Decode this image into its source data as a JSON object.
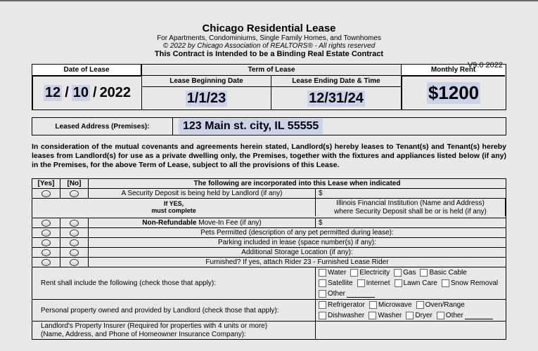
{
  "header": {
    "title": "Chicago Residential Lease",
    "subtitle": "For Apartments, Condominiums, Single Family Homes, and Townhomes",
    "copyright": "© 2022 by Chicago Association of REALTORS® - All rights reserved",
    "binding": "This Contract is Intended to be a Binding Real Estate Contract",
    "version": "V9.0 2022"
  },
  "top": {
    "date_label": "Date of Lease",
    "date_mm": "12",
    "date_dd": "10",
    "date_yy": "2022",
    "term_label": "Term of Lease",
    "begin_label": "Lease Beginning Date",
    "end_label": "Lease Ending Date & Time",
    "begin_val": "1/1/23",
    "end_val": "12/31/24",
    "rent_label": "Monthly Rent",
    "rent_val": "$1200"
  },
  "addr": {
    "label": "Leased Address (Premises):",
    "value": "123 Main st. city, IL 55555"
  },
  "para": "In consideration of the mutual covenants and agreements herein stated, Landlord(s) hereby leases to Tenant(s) and Tenant(s) hereby leases from Landlord(s) for use as a private dwelling only, the Premises, together with the fixtures and appliances listed below (if any) in the Premises, for the above Term of Lease, subject to all the provisions of this Lease.",
  "table": {
    "yes": "[Yes]",
    "no": "[No]",
    "inc_label": "The following are incorporated into this Lease when indicated",
    "yes_note1": "If YES,",
    "yes_note2": "must complete",
    "r1": "A Security Deposit is being held by Landlord (if any)",
    "r2a": "Illinois Financial Institution (Name and Address)",
    "r2b": "where Security Deposit shall be or is held (if any)",
    "r3_bold": "Non-Refundable",
    "r3_rest": " Move-In Fee (if any)",
    "r4": "Pets Permitted (description of any pet permitted during lease):",
    "r5": "Parking included in lease (space number(s) if any):",
    "r6": "Additional Storage Location (if any):",
    "r7": "Furnished? If yes, attach Rider 23 - Furnished Lease Rider",
    "r8": "Rent shall include the following (check those that apply):",
    "r9": "Personal property owned and provided by Landlord (check those that apply):",
    "r10a": "Landlord's Property Insurer (Required for properties with 4 units or more)",
    "r10b": "(Name, Address, and Phone of Homeowner Insurance Company):",
    "dollar": "$"
  },
  "checks": {
    "utilities": [
      "Water",
      "Electricity",
      "Gas",
      "Basic Cable",
      "Satellite",
      "Internet",
      "Lawn Care",
      "Snow Removal",
      "Other"
    ],
    "appliances": [
      "Refrigerator",
      "Microwave",
      "Oven/Range",
      "Dishwasher",
      "Washer",
      "Dryer",
      "Other"
    ]
  }
}
